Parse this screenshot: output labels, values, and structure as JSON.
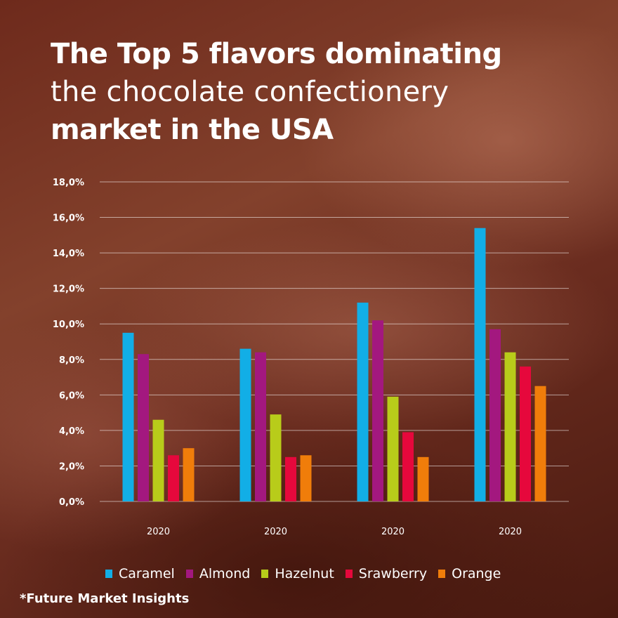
{
  "title": {
    "line1": "The Top 5 flavors dominating",
    "line2": "the chocolate confectionery",
    "line3": "market in the USA"
  },
  "source": "*Future Market Insights",
  "colors": {
    "Caramel": "#12aee6",
    "Almond": "#a3187f",
    "Hazelnut": "#b8cc1a",
    "Srawberry": "#e6083c",
    "Orange": "#f07d0a"
  },
  "chart_data": {
    "type": "bar",
    "title": "",
    "xlabel": "",
    "ylabel": "",
    "categories": [
      "2020",
      "2020",
      "2020",
      "2020"
    ],
    "ylim": [
      0,
      18
    ],
    "yticks": [
      "0,0%",
      "2,0%",
      "4,0%",
      "6,0%",
      "8,0%",
      "10,0%",
      "12,0%",
      "14,0%",
      "16,0%",
      "18,0%"
    ],
    "grid": true,
    "legend": "bottom",
    "series": [
      {
        "name": "Caramel",
        "values": [
          9.5,
          8.6,
          11.2,
          15.4
        ]
      },
      {
        "name": "Almond",
        "values": [
          8.3,
          8.4,
          10.2,
          9.7
        ]
      },
      {
        "name": "Hazelnut",
        "values": [
          4.6,
          4.9,
          5.9,
          8.4
        ]
      },
      {
        "name": "Srawberry",
        "values": [
          2.6,
          2.5,
          3.9,
          7.6
        ]
      },
      {
        "name": "Orange",
        "values": [
          3.0,
          2.6,
          2.5,
          6.5
        ]
      }
    ]
  }
}
